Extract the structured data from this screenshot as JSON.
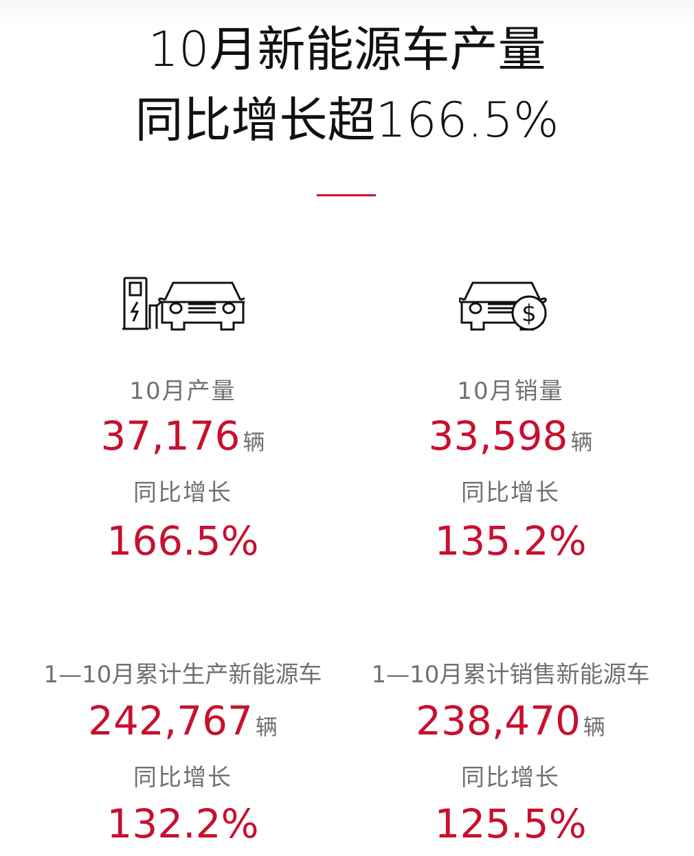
{
  "title": {
    "line1": "10月新能源车产量",
    "line2": "同比增长超166.5%"
  },
  "colors": {
    "accent": "#c8102e",
    "label": "#707070",
    "title": "#111111"
  },
  "stats": [
    {
      "icon": "ev-charging-car-icon",
      "label": "10月产量",
      "value": "37,176",
      "unit": "辆",
      "growth_label": "同比增长",
      "growth": "166.5%"
    },
    {
      "icon": "car-dollar-icon",
      "label": "10月销量",
      "value": "33,598",
      "unit": "辆",
      "growth_label": "同比增长",
      "growth": "135.2%"
    },
    {
      "label": "1—10月累计生产新能源车",
      "value": "242,767",
      "unit": "辆",
      "growth_label": "同比增长",
      "growth": "132.2%"
    },
    {
      "label": "1—10月累计销售新能源车",
      "value": "238,470",
      "unit": "辆",
      "growth_label": "同比增长",
      "growth": "125.5%"
    }
  ]
}
